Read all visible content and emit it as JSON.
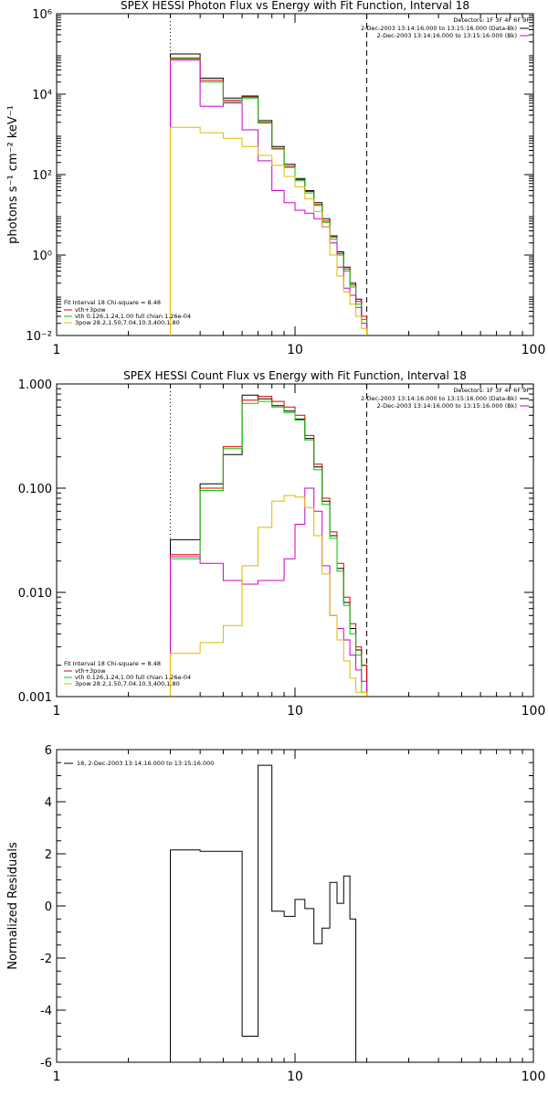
{
  "chart_data": [
    {
      "type": "line",
      "title": "SPEX HESSI Photon Flux vs Energy with Fit Function, Interval 18",
      "ylabel": "photons s⁻¹ cm⁻² keV⁻¹",
      "xlabel": "",
      "xscale": "log",
      "yscale": "log",
      "xlim": [
        1,
        100
      ],
      "ylim": [
        0.01,
        1000000
      ],
      "xticks": [
        {
          "value": 1,
          "label": "1"
        },
        {
          "value": 10,
          "label": "10"
        },
        {
          "value": 100,
          "label": "100"
        }
      ],
      "yticks": [
        {
          "value": 0.01,
          "label": "10⁻²"
        },
        {
          "value": 1,
          "label": "10⁰"
        },
        {
          "value": 100,
          "label": "10²"
        },
        {
          "value": 10000,
          "label": "10⁴"
        },
        {
          "value": 1000000,
          "label": "10⁶"
        }
      ],
      "vlines": [
        {
          "x": 3,
          "style": "dotted"
        },
        {
          "x": 20,
          "style": "dashed"
        }
      ],
      "legend_topright": {
        "header": "Detectors: 1F 3F 4F 6F 9F",
        "entries": [
          {
            "label": "2-Dec-2003 13:14:16.000 to 13:15:16.000 (Data-Bk)",
            "color": "#000000"
          },
          {
            "label": "2-Dec-2003 13:14:16.000 to 13:15:16.000 (Bk)",
            "color": "#cc00cc"
          }
        ]
      },
      "legend_bottomleft": {
        "header": "Fit Interval 18   Chi-square = 8.48",
        "entries": [
          {
            "label": "vth+3pow",
            "color": "#dd0000"
          },
          {
            "label": "vth 0.126,1.24,1.00  full chian 1.26e-04",
            "color": "#00cc00"
          },
          {
            "label": "3pow 28.2,1.50,7.04,10.3,400,1.80",
            "color": "#ddbb00"
          }
        ]
      },
      "x_edges": [
        3,
        4,
        5,
        6,
        7,
        8,
        9,
        10,
        11,
        12,
        13,
        14,
        15,
        16,
        17,
        18,
        19,
        20
      ],
      "series": [
        {
          "color": "#000000",
          "values": [
            100000,
            25000,
            8000,
            9000,
            2200,
            500,
            180,
            80,
            40,
            20,
            8,
            3,
            1.2,
            0.5,
            0.2,
            0.08,
            0.03
          ]
        },
        {
          "color": "#dd0000",
          "values": [
            80000,
            22000,
            7000,
            8500,
            2000,
            450,
            160,
            75,
            38,
            18,
            7,
            2.8,
            1.1,
            0.45,
            0.18,
            0.07,
            0.03
          ]
        },
        {
          "color": "#00cc00",
          "values": [
            75000,
            20000,
            6500,
            8000,
            1900,
            430,
            150,
            70,
            35,
            17,
            6.5,
            2.5,
            1.0,
            0.4,
            0.16,
            0.06,
            0.025
          ]
        },
        {
          "color": "#cc00cc",
          "values": [
            70000,
            5000,
            6000,
            1300,
            220,
            40,
            20,
            13,
            11,
            8,
            5,
            2,
            0.5,
            0.15,
            0.1,
            0.05,
            0.02
          ]
        },
        {
          "color": "#ddbb00",
          "values": [
            1500,
            1100,
            800,
            500,
            300,
            170,
            90,
            50,
            25,
            12,
            5,
            1.0,
            0.3,
            0.12,
            0.06,
            0.03,
            0.015
          ]
        }
      ]
    },
    {
      "type": "line",
      "title": "SPEX HESSI Count Flux vs Energy with Fit Function, Interval 18",
      "ylabel": "",
      "xlabel": "",
      "xscale": "log",
      "yscale": "log",
      "xlim": [
        1,
        100
      ],
      "ylim": [
        0.001,
        1
      ],
      "xticks": [
        {
          "value": 1,
          "label": "1"
        },
        {
          "value": 10,
          "label": "10"
        },
        {
          "value": 100,
          "label": "100"
        }
      ],
      "yticks": [
        {
          "value": 0.001,
          "label": "0.001"
        },
        {
          "value": 0.01,
          "label": "0.010"
        },
        {
          "value": 0.1,
          "label": "0.100"
        },
        {
          "value": 1,
          "label": "1.000"
        }
      ],
      "vlines": [
        {
          "x": 3,
          "style": "dotted"
        },
        {
          "x": 20,
          "style": "dashed"
        }
      ],
      "legend_topright": {
        "header": "Detectors: 1F 3F 4F 6F 9F",
        "entries": [
          {
            "label": "2-Dec-2003 13:14:16.000 to 13:15:16.000 (Data-Bk)",
            "color": "#000000"
          },
          {
            "label": "2-Dec-2003 13:14:16.000 to 13:15:16.000 (Bk)",
            "color": "#cc00cc"
          }
        ]
      },
      "legend_bottomleft": {
        "header": "Fit Interval 18   Chi-square = 8.48",
        "entries": [
          {
            "label": "vth+3pow",
            "color": "#dd0000"
          },
          {
            "label": "vth 0.126,1.24,1.00  full chian 1.26e-04",
            "color": "#00cc00"
          },
          {
            "label": "3pow 28.2,1.50,7.04,10.3,400,1.80",
            "color": "#ddbb00"
          }
        ]
      },
      "x_edges": [
        3,
        4,
        5,
        6,
        7,
        8,
        9,
        10,
        11,
        12,
        13,
        14,
        15,
        16,
        17,
        18,
        19,
        20
      ],
      "series": [
        {
          "color": "#000000",
          "values": [
            0.032,
            0.11,
            0.21,
            0.78,
            0.72,
            0.62,
            0.55,
            0.46,
            0.3,
            0.16,
            0.075,
            0.035,
            0.017,
            0.008,
            0.0045,
            0.0028,
            0.002
          ]
        },
        {
          "color": "#dd0000",
          "values": [
            0.023,
            0.1,
            0.25,
            0.7,
            0.76,
            0.68,
            0.6,
            0.5,
            0.32,
            0.17,
            0.08,
            0.038,
            0.019,
            0.009,
            0.005,
            0.003,
            0.002
          ]
        },
        {
          "color": "#00cc00",
          "values": [
            0.021,
            0.095,
            0.24,
            0.65,
            0.68,
            0.6,
            0.53,
            0.45,
            0.29,
            0.15,
            0.07,
            0.033,
            0.016,
            0.0075,
            0.004,
            0.0025,
            0.0011
          ]
        },
        {
          "color": "#cc00cc",
          "values": [
            0.022,
            0.019,
            0.013,
            0.012,
            0.013,
            0.013,
            0.021,
            0.045,
            0.1,
            0.06,
            0.018,
            0.006,
            0.0045,
            0.0035,
            0.0025,
            0.0018,
            0.0014
          ]
        },
        {
          "color": "#ddbb00",
          "values": [
            0.0026,
            0.0033,
            0.0048,
            0.018,
            0.042,
            0.075,
            0.085,
            0.082,
            0.065,
            0.035,
            0.015,
            0.006,
            0.0035,
            0.0022,
            0.0015,
            0.0011,
            0.0011
          ]
        }
      ]
    },
    {
      "type": "line",
      "title": "",
      "ylabel": "Normalized Residuals",
      "xlabel": "",
      "xscale": "log",
      "yscale": "linear",
      "xlim": [
        1,
        100
      ],
      "ylim": [
        -6,
        6
      ],
      "xticks": [
        {
          "value": 1,
          "label": "1"
        },
        {
          "value": 10,
          "label": "10"
        },
        {
          "value": 100,
          "label": "100"
        }
      ],
      "yticks": [
        {
          "value": -6,
          "label": "-6"
        },
        {
          "value": -4,
          "label": "-4"
        },
        {
          "value": -2,
          "label": "-2"
        },
        {
          "value": 0,
          "label": "0"
        },
        {
          "value": 2,
          "label": "2"
        },
        {
          "value": 4,
          "label": "4"
        },
        {
          "value": 6,
          "label": "6"
        }
      ],
      "vlines": [],
      "legend_topleft": {
        "entries": [
          {
            "label": "18,  2-Dec-2003 13:14:16.000 to 13:15:16.000",
            "color": "#000000"
          }
        ]
      },
      "x_edges": [
        3,
        4,
        5,
        6,
        7,
        8,
        9,
        10,
        11,
        12,
        13,
        14,
        15,
        16,
        17,
        18,
        19,
        20
      ],
      "series": [
        {
          "color": "#000000",
          "values": [
            2.15,
            2.1,
            2.1,
            -5.0,
            5.4,
            -0.2,
            -0.4,
            0.25,
            -0.1,
            -1.45,
            -0.85,
            0.9,
            0.1,
            1.15,
            -0.5,
            -6.0,
            -6.0
          ]
        }
      ]
    }
  ]
}
